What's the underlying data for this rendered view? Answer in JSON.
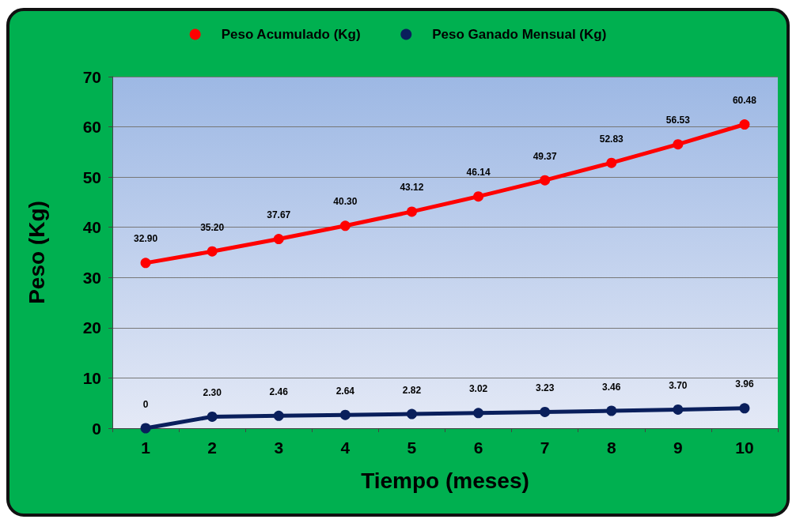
{
  "chart_data": {
    "type": "line",
    "xlabel": "Tiempo (meses)",
    "ylabel": "Peso (Kg)",
    "categories": [
      "1",
      "2",
      "3",
      "4",
      "5",
      "6",
      "7",
      "8",
      "9",
      "10"
    ],
    "series": [
      {
        "name": "Peso Acumulado (Kg)",
        "color": "#ff0000",
        "values": [
          32.9,
          35.2,
          37.67,
          40.3,
          43.12,
          46.14,
          49.37,
          52.83,
          56.53,
          60.48
        ],
        "value_labels": [
          "32.90",
          "35.20",
          "37.67",
          "40.30",
          "43.12",
          "46.14",
          "49.37",
          "52.83",
          "56.53",
          "60.48"
        ]
      },
      {
        "name": "Peso Ganado Mensual (Kg)",
        "color": "#0a1f5c",
        "values": [
          0,
          2.3,
          2.46,
          2.64,
          2.82,
          3.02,
          3.23,
          3.46,
          3.7,
          3.96
        ],
        "value_labels": [
          "0",
          "2.30",
          "2.46",
          "2.64",
          "2.82",
          "3.02",
          "3.23",
          "3.46",
          "3.70",
          "3.96"
        ]
      }
    ],
    "ylim": [
      0,
      70
    ],
    "yticks": [
      0,
      10,
      20,
      30,
      40,
      50,
      60,
      70
    ],
    "grid": "y",
    "legend": "top",
    "marker": "circle",
    "line_style": "solid"
  }
}
